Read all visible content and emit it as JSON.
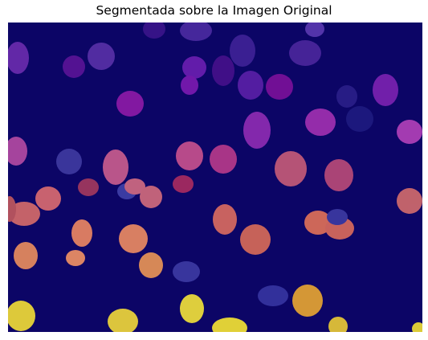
{
  "figure": {
    "title": "Segmentada sobre la Imagen Original",
    "colors": {
      "background": "#0c0566",
      "palette": "plasma"
    }
  }
}
